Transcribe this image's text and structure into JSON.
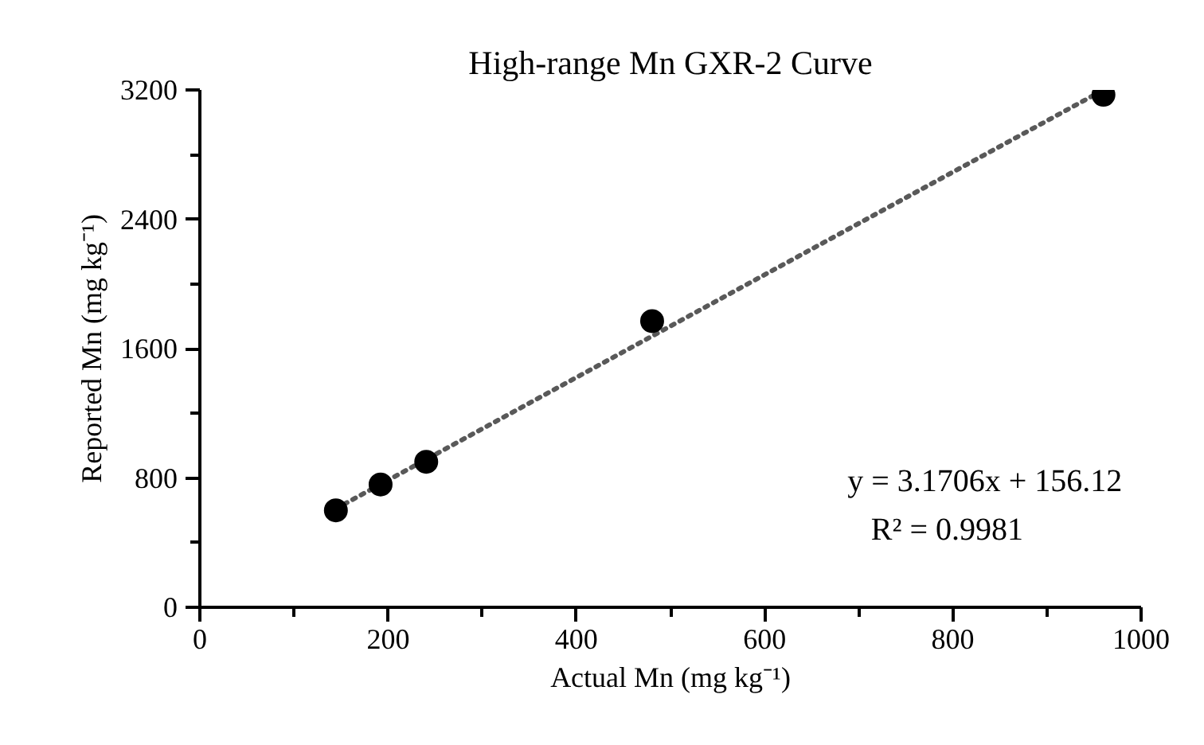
{
  "chart_data": {
    "type": "scatter",
    "title": "High-range Mn GXR-2 Curve",
    "xlabel": "Actual Mn (mg kg⁻¹)",
    "ylabel": "Reported Mn (mg kg⁻¹)",
    "x": [
      144.5,
      192,
      240.5,
      480.5,
      960
    ],
    "series": [
      {
        "color": "#000000",
        "marker": "circle",
        "values": [
          600,
          760,
          900,
          1770,
          3170
        ]
      },
      {
        "type": "line",
        "color": "#595959",
        "line_style": "dotted",
        "marker": "none",
        "x": [
          144.5,
          960
        ],
        "values": [
          610,
          3200
        ]
      }
    ],
    "xlim": [
      0,
      1000
    ],
    "xticks": [
      0,
      200,
      400,
      600,
      800,
      1000
    ],
    "ylim": [
      0,
      3200
    ],
    "yticks": [
      0,
      800,
      1600,
      2400,
      3200
    ],
    "grid": false,
    "annotations": [
      "y = 3.1706x + 156.12",
      "R² = 0.9981"
    ]
  }
}
